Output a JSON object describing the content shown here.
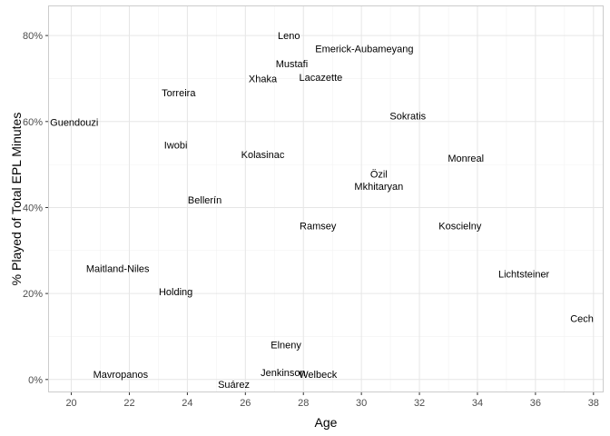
{
  "chart_data": {
    "type": "scatter",
    "title": "",
    "xlabel": "Age",
    "ylabel": "% Played of Total EPL Minutes",
    "xlim": [
      19.2,
      38.35
    ],
    "ylim": [
      -0.03,
      0.87
    ],
    "x_ticks": [
      20,
      22,
      24,
      26,
      28,
      30,
      32,
      34,
      36,
      38
    ],
    "x_tick_labels": [
      "20",
      "22",
      "24",
      "26",
      "28",
      "30",
      "32",
      "34",
      "36",
      "38"
    ],
    "y_ticks": [
      0,
      0.2,
      0.4,
      0.6,
      0.8
    ],
    "y_tick_labels": [
      "0%",
      "20%",
      "40%",
      "60%",
      "80%"
    ],
    "grid": true,
    "legend": "none",
    "colors": {
      "panel_border": "#cccccc",
      "grid_major": "#e6e6e6",
      "grid_minor": "#f2f2f2",
      "text": "#000000",
      "tick_text": "#4d4d4d"
    },
    "points": [
      {
        "label": "Leno",
        "x": 27.5,
        "y": 0.8
      },
      {
        "label": "Emerick-Aubameyang",
        "x": 30.1,
        "y": 0.77
      },
      {
        "label": "Mustafi",
        "x": 27.6,
        "y": 0.735
      },
      {
        "label": "Xhaka",
        "x": 26.6,
        "y": 0.7
      },
      {
        "label": "Lacazette",
        "x": 28.6,
        "y": 0.703
      },
      {
        "label": "Torreira",
        "x": 23.7,
        "y": 0.667
      },
      {
        "label": "Sokratis",
        "x": 31.6,
        "y": 0.613
      },
      {
        "label": "Guendouzi",
        "x": 20.1,
        "y": 0.598
      },
      {
        "label": "Iwobi",
        "x": 23.6,
        "y": 0.546
      },
      {
        "label": "Kolasinac",
        "x": 26.6,
        "y": 0.523
      },
      {
        "label": "Monreal",
        "x": 33.6,
        "y": 0.515
      },
      {
        "label": "Özil",
        "x": 30.6,
        "y": 0.478
      },
      {
        "label": "Mkhitaryan",
        "x": 30.6,
        "y": 0.45
      },
      {
        "label": "Bellerín",
        "x": 24.6,
        "y": 0.418
      },
      {
        "label": "Ramsey",
        "x": 28.5,
        "y": 0.358
      },
      {
        "label": "Koscielny",
        "x": 33.4,
        "y": 0.358
      },
      {
        "label": "Maitland-Niles",
        "x": 21.6,
        "y": 0.258
      },
      {
        "label": "Lichtsteiner",
        "x": 35.6,
        "y": 0.246
      },
      {
        "label": "Holding",
        "x": 23.6,
        "y": 0.204
      },
      {
        "label": "Cech",
        "x": 37.6,
        "y": 0.142
      },
      {
        "label": "Elneny",
        "x": 27.4,
        "y": 0.081
      },
      {
        "label": "Mavropanos",
        "x": 21.7,
        "y": 0.012
      },
      {
        "label": "Jenkinson",
        "x": 27.3,
        "y": 0.016
      },
      {
        "label": "Welbeck",
        "x": 28.5,
        "y": 0.012
      },
      {
        "label": "Suárez",
        "x": 25.6,
        "y": -0.011
      }
    ]
  }
}
